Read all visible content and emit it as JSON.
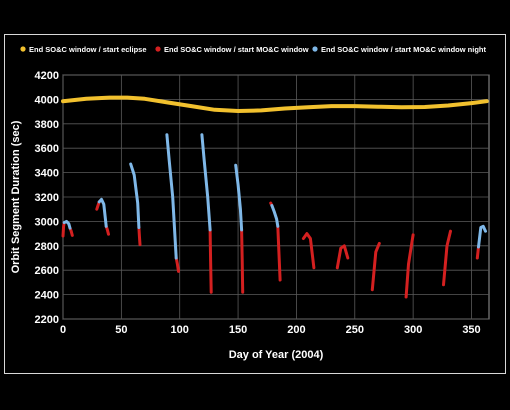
{
  "chart_data": {
    "type": "line",
    "xlabel": "Day of Year (2004)",
    "ylabel": "Orbit Segment Duration (sec)",
    "xlim": [
      0,
      365
    ],
    "ylim": [
      2200,
      4200
    ],
    "xticks": [
      0,
      50,
      100,
      150,
      200,
      250,
      300,
      350
    ],
    "yticks": [
      2200,
      2400,
      2600,
      2800,
      3000,
      3200,
      3400,
      3600,
      3800,
      4000,
      4200
    ],
    "grid": true,
    "legend_position": "top",
    "series": [
      {
        "name": "End SO&C window / start eclipse",
        "color": "#f2c12e",
        "segments": [
          [
            [
              0,
              3985
            ],
            [
              20,
              4005
            ],
            [
              40,
              4015
            ],
            [
              55,
              4015
            ],
            [
              70,
              4005
            ],
            [
              90,
              3975
            ],
            [
              110,
              3945
            ],
            [
              130,
              3915
            ],
            [
              150,
              3905
            ],
            [
              170,
              3910
            ],
            [
              190,
              3925
            ],
            [
              210,
              3935
            ],
            [
              230,
              3945
            ],
            [
              250,
              3945
            ],
            [
              270,
              3940
            ],
            [
              290,
              3935
            ],
            [
              310,
              3938
            ],
            [
              330,
              3950
            ],
            [
              350,
              3970
            ],
            [
              363,
              3985
            ]
          ]
        ]
      },
      {
        "name": "End SO&C window / start MO&C window",
        "color": "#d42020",
        "segments": [
          [
            [
              0,
              2880
            ],
            [
              0.5,
              2960
            ],
            [
              1,
              2990
            ]
          ],
          [
            [
              6,
              2945
            ],
            [
              7,
              2920
            ],
            [
              8,
              2885
            ]
          ],
          [
            [
              29,
              3100
            ],
            [
              30,
              3130
            ],
            [
              31,
              3160
            ]
          ],
          [
            [
              37,
              2960
            ],
            [
              38,
              2930
            ],
            [
              39,
              2895
            ]
          ],
          [
            [
              65,
              2950
            ],
            [
              65.5,
              2880
            ],
            [
              66,
              2810
            ]
          ],
          [
            [
              97,
              2700
            ],
            [
              98,
              2650
            ],
            [
              99,
              2590
            ]
          ],
          [
            [
              126,
              2930
            ],
            [
              126.5,
              2680
            ],
            [
              127,
              2420
            ]
          ],
          [
            [
              153,
              2930
            ],
            [
              153.5,
              2680
            ],
            [
              154,
              2420
            ]
          ],
          [
            [
              178,
              3150
            ],
            [
              179,
              3130
            ]
          ],
          [
            [
              184,
              2960
            ],
            [
              185,
              2750
            ],
            [
              186,
              2520
            ]
          ],
          [
            [
              206,
              2860
            ],
            [
              209,
              2900
            ],
            [
              212,
              2860
            ],
            [
              215,
              2620
            ]
          ],
          [
            [
              235,
              2620
            ],
            [
              238,
              2780
            ],
            [
              241,
              2800
            ],
            [
              244,
              2700
            ]
          ],
          [
            [
              265,
              2440
            ],
            [
              268,
              2750
            ],
            [
              271,
              2820
            ]
          ],
          [
            [
              294,
              2380
            ],
            [
              296,
              2650
            ],
            [
              300,
              2890
            ]
          ],
          [
            [
              326,
              2480
            ],
            [
              329,
              2800
            ],
            [
              332,
              2920
            ]
          ],
          [
            [
              355,
              2700
            ],
            [
              356,
              2790
            ]
          ]
        ]
      },
      {
        "name": "End SO&C window / start MO&C window night",
        "color": "#7fb8e8",
        "segments": [
          [
            [
              1,
              2990
            ],
            [
              3,
              3000
            ],
            [
              5,
              2980
            ],
            [
              6,
              2945
            ]
          ],
          [
            [
              31,
              3160
            ],
            [
              33,
              3180
            ],
            [
              35,
              3140
            ],
            [
              37,
              2960
            ]
          ],
          [
            [
              58,
              3470
            ],
            [
              61,
              3380
            ],
            [
              64,
              3150
            ],
            [
              65,
              2950
            ]
          ],
          [
            [
              89,
              3710
            ],
            [
              91,
              3500
            ],
            [
              94,
              3200
            ],
            [
              97,
              2700
            ]
          ],
          [
            [
              119,
              3710
            ],
            [
              121,
              3500
            ],
            [
              124,
              3200
            ],
            [
              126,
              2930
            ]
          ],
          [
            [
              148,
              3460
            ],
            [
              150,
              3300
            ],
            [
              152,
              3100
            ],
            [
              153,
              2930
            ]
          ],
          [
            [
              179,
              3130
            ],
            [
              181,
              3080
            ],
            [
              183,
              3020
            ],
            [
              184,
              2960
            ]
          ],
          [
            [
              356,
              2790
            ],
            [
              358,
              2950
            ],
            [
              360,
              2960
            ],
            [
              362,
              2920
            ]
          ]
        ]
      }
    ]
  }
}
